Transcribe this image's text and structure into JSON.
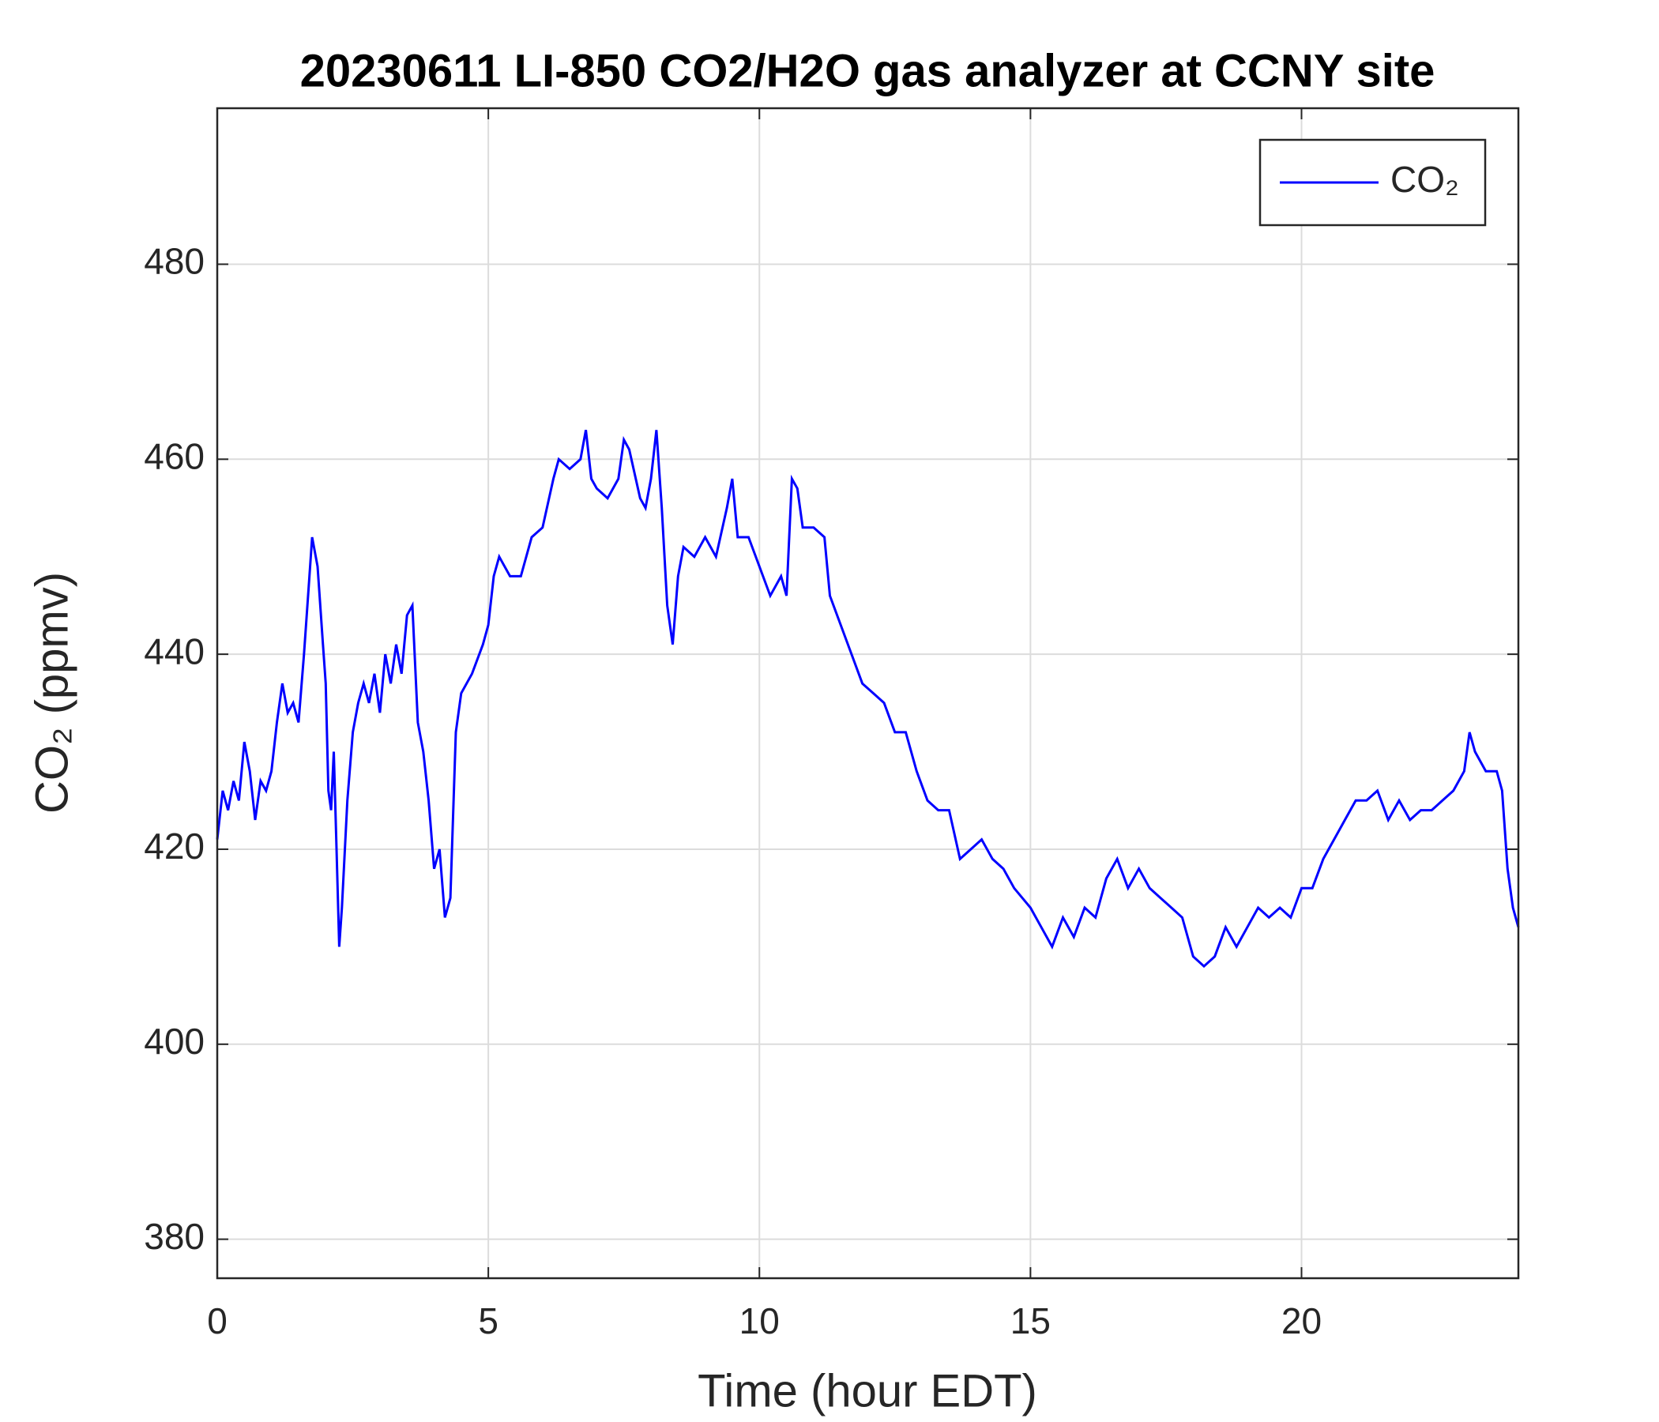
{
  "chart_data": {
    "type": "line",
    "title": "20230611 LI-850 CO2/H2O gas analyzer at CCNY site",
    "xlabel": "Time (hour EDT)",
    "ylabel": "CO₂ (ppmv)",
    "x": [
      0,
      0.1,
      0.2,
      0.3,
      0.4,
      0.5,
      0.6,
      0.7,
      0.8,
      0.9,
      1.0,
      1.1,
      1.2,
      1.3,
      1.4,
      1.5,
      1.6,
      1.7,
      1.75,
      1.85,
      1.95,
      2.0,
      2.05,
      2.1,
      2.15,
      2.2,
      2.25,
      2.3,
      2.4,
      2.5,
      2.6,
      2.7,
      2.8,
      2.9,
      3.0,
      3.1,
      3.2,
      3.3,
      3.4,
      3.5,
      3.6,
      3.7,
      3.8,
      3.9,
      4.0,
      4.1,
      4.2,
      4.3,
      4.4,
      4.5,
      4.7,
      4.9,
      5.0,
      5.1,
      5.2,
      5.4,
      5.6,
      5.8,
      6.0,
      6.2,
      6.3,
      6.5,
      6.7,
      6.8,
      6.9,
      7.0,
      7.2,
      7.4,
      7.5,
      7.6,
      7.8,
      7.9,
      8.0,
      8.1,
      8.2,
      8.3,
      8.4,
      8.5,
      8.6,
      8.8,
      9.0,
      9.2,
      9.4,
      9.5,
      9.6,
      9.8,
      10.0,
      10.2,
      10.4,
      10.5,
      10.6,
      10.7,
      10.8,
      11.0,
      11.2,
      11.3,
      11.5,
      11.7,
      11.9,
      12.1,
      12.3,
      12.5,
      12.7,
      12.9,
      13.1,
      13.3,
      13.5,
      13.7,
      13.9,
      14.1,
      14.3,
      14.5,
      14.7,
      15.0,
      15.2,
      15.4,
      15.6,
      15.8,
      16.0,
      16.2,
      16.4,
      16.6,
      16.8,
      17.0,
      17.2,
      17.4,
      17.6,
      17.8,
      18.0,
      18.2,
      18.4,
      18.6,
      18.8,
      19.0,
      19.2,
      19.4,
      19.6,
      19.8,
      20.0,
      20.2,
      20.4,
      20.6,
      20.8,
      21.0,
      21.2,
      21.4,
      21.6,
      21.8,
      22.0,
      22.2,
      22.4,
      22.6,
      22.8,
      23.0,
      23.1,
      23.2,
      23.4,
      23.6,
      23.7,
      23.8,
      23.9,
      24.0
    ],
    "series": [
      {
        "name": "CO₂",
        "color": "#0000ff",
        "values": [
          421,
          426,
          424,
          427,
          425,
          431,
          428,
          423,
          427,
          426,
          428,
          433,
          437,
          434,
          435,
          433,
          440,
          448,
          452,
          449,
          441,
          437,
          426,
          424,
          430,
          420,
          410,
          414,
          425,
          432,
          435,
          437,
          435,
          438,
          434,
          440,
          437,
          441,
          438,
          444,
          445,
          433,
          430,
          425,
          418,
          420,
          413,
          415,
          432,
          436,
          438,
          441,
          443,
          448,
          450,
          448,
          448,
          452,
          453,
          458,
          460,
          459,
          460,
          463,
          458,
          457,
          456,
          458,
          462,
          461,
          456,
          455,
          458,
          463,
          455,
          445,
          441,
          448,
          451,
          450,
          452,
          450,
          455,
          458,
          452,
          452,
          449,
          446,
          448,
          446,
          458,
          457,
          453,
          453,
          452,
          446,
          443,
          440,
          437,
          436,
          435,
          432,
          432,
          428,
          425,
          424,
          424,
          419,
          420,
          421,
          419,
          418,
          416,
          414,
          412,
          410,
          413,
          411,
          414,
          413,
          417,
          419,
          416,
          418,
          416,
          415,
          414,
          413,
          409,
          408,
          409,
          412,
          410,
          412,
          414,
          413,
          414,
          413,
          416,
          416,
          419,
          421,
          423,
          425,
          425,
          426,
          423,
          425,
          423,
          424,
          424,
          425,
          426,
          428,
          432,
          430,
          428,
          428,
          426,
          418,
          414,
          412
        ]
      }
    ],
    "xlim": [
      0,
      24
    ],
    "ylim": [
      376,
      496
    ],
    "xticks": [
      0,
      5,
      10,
      15,
      20
    ],
    "yticks": [
      380,
      400,
      420,
      440,
      460,
      480
    ],
    "grid": true,
    "legend": "upper right"
  }
}
